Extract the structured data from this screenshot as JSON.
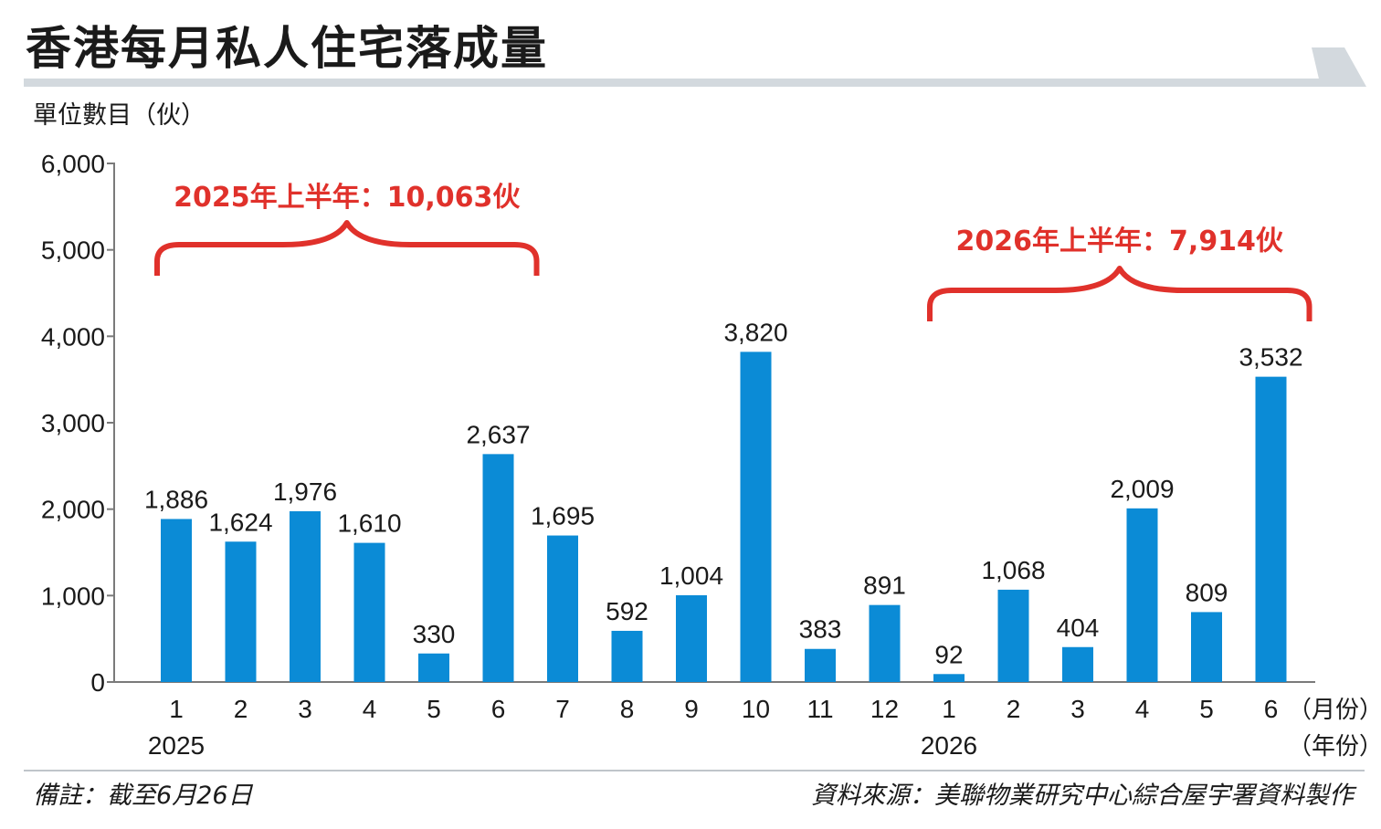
{
  "header": {
    "title": "香港每月私人住宅落成量",
    "y_unit": "單位數目（伙）"
  },
  "colors": {
    "bar": "#0b8bd6",
    "annotation": "#e0312b",
    "title_bar": "#d3d9de",
    "arrow": "#d3d9de",
    "axis": "#7a7a7a"
  },
  "chart_data": {
    "type": "bar",
    "title": "香港每月私人住宅落成量",
    "ylabel": "單位數目（伙）",
    "ylim": [
      0,
      6000
    ],
    "yticks": [
      {
        "value": 0,
        "label": "0"
      },
      {
        "value": 1000,
        "label": "1,000"
      },
      {
        "value": 2000,
        "label": "2,000"
      },
      {
        "value": 3000,
        "label": "3,000"
      },
      {
        "value": 4000,
        "label": "4,000"
      },
      {
        "value": 5000,
        "label": "5,000"
      },
      {
        "value": 6000,
        "label": "6,000"
      }
    ],
    "categories": [
      "1",
      "2",
      "3",
      "4",
      "5",
      "6",
      "7",
      "8",
      "9",
      "10",
      "11",
      "12",
      "1",
      "2",
      "3",
      "4",
      "5",
      "6"
    ],
    "values": [
      1886,
      1624,
      1976,
      1610,
      330,
      2637,
      1695,
      592,
      1004,
      3820,
      383,
      891,
      92,
      1068,
      404,
      2009,
      809,
      3532
    ],
    "value_labels": [
      "1,886",
      "1,624",
      "1,976",
      "1,610",
      "330",
      "2,637",
      "1,695",
      "592",
      "1,004",
      "3,820",
      "383",
      "891",
      "92",
      "1,068",
      "404",
      "2,009",
      "809",
      "3,532"
    ],
    "year_labels": [
      {
        "index": 0,
        "label": "2025"
      },
      {
        "index": 12,
        "label": "2026"
      }
    ],
    "x_unit_month": "（月份）",
    "x_unit_year": "（年份）",
    "grid": false,
    "annotations": [
      {
        "text": "2025年上半年：10,063伙",
        "from_index": 0,
        "to_index": 5
      },
      {
        "text": "2026年上半年：7,914伙",
        "from_index": 12,
        "to_index": 17
      }
    ]
  },
  "footer": {
    "note": "備註：截至6月26日",
    "source": "資料來源：美聯物業研究中心綜合屋宇署資料製作"
  }
}
